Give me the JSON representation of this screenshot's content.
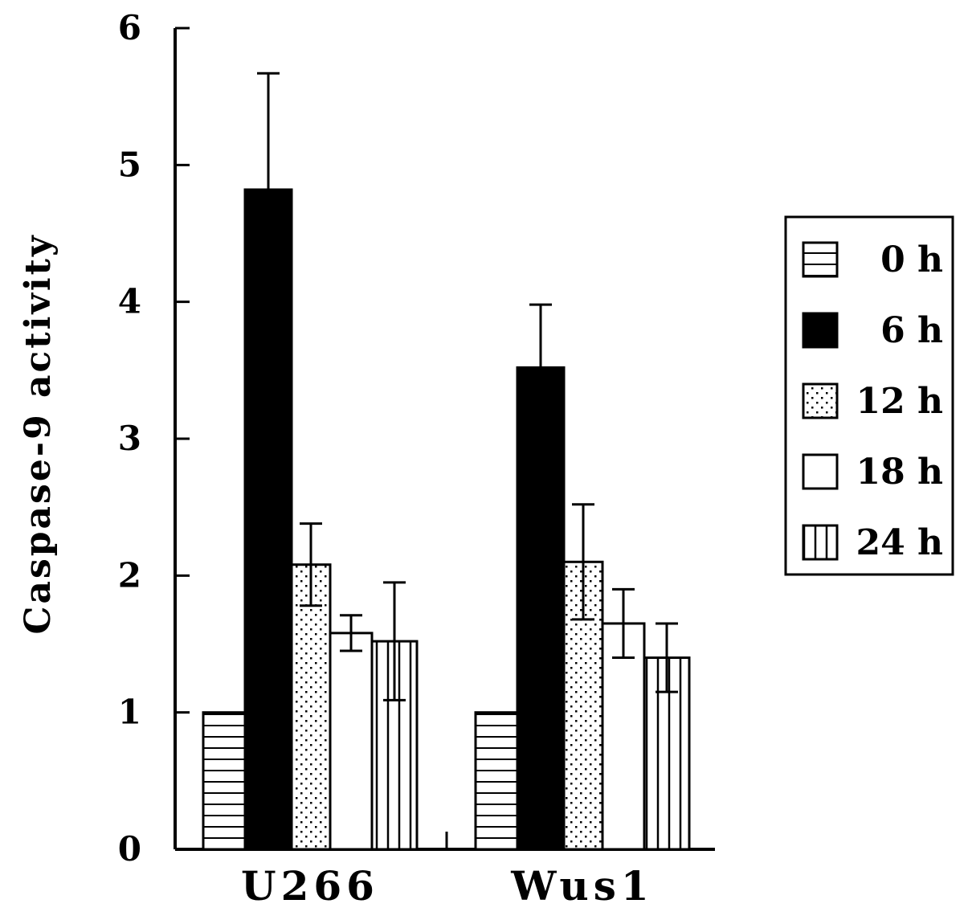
{
  "chart_data": {
    "type": "bar",
    "categories": [
      "U266",
      "Wus1"
    ],
    "series": [
      {
        "name": "0 h",
        "pattern": "hlines",
        "values": [
          1.0,
          1.0
        ],
        "errors": [
          0,
          0
        ]
      },
      {
        "name": "6 h",
        "pattern": "solid",
        "values": [
          4.82,
          3.52
        ],
        "errors": [
          0.85,
          0.46
        ]
      },
      {
        "name": "12 h",
        "pattern": "dots",
        "values": [
          2.08,
          2.1
        ],
        "errors": [
          0.3,
          0.42
        ]
      },
      {
        "name": "18 h",
        "pattern": "blank",
        "values": [
          1.58,
          1.65
        ],
        "errors": [
          0.13,
          0.25
        ]
      },
      {
        "name": "24 h",
        "pattern": "vlines",
        "values": [
          1.52,
          1.4
        ],
        "errors": [
          0.43,
          0.25
        ]
      }
    ],
    "title": "",
    "xlabel": "",
    "ylabel": "Caspase-9 activity",
    "ylim": [
      0,
      6
    ],
    "yticks": [
      "0",
      "1",
      "2",
      "3",
      "4",
      "5",
      "6"
    ],
    "grid": false,
    "legend_position": "right",
    "colors": {
      "bar_fill_solid": "#000000",
      "bar_fill_light": "#ffffff",
      "stroke": "#000000"
    }
  }
}
